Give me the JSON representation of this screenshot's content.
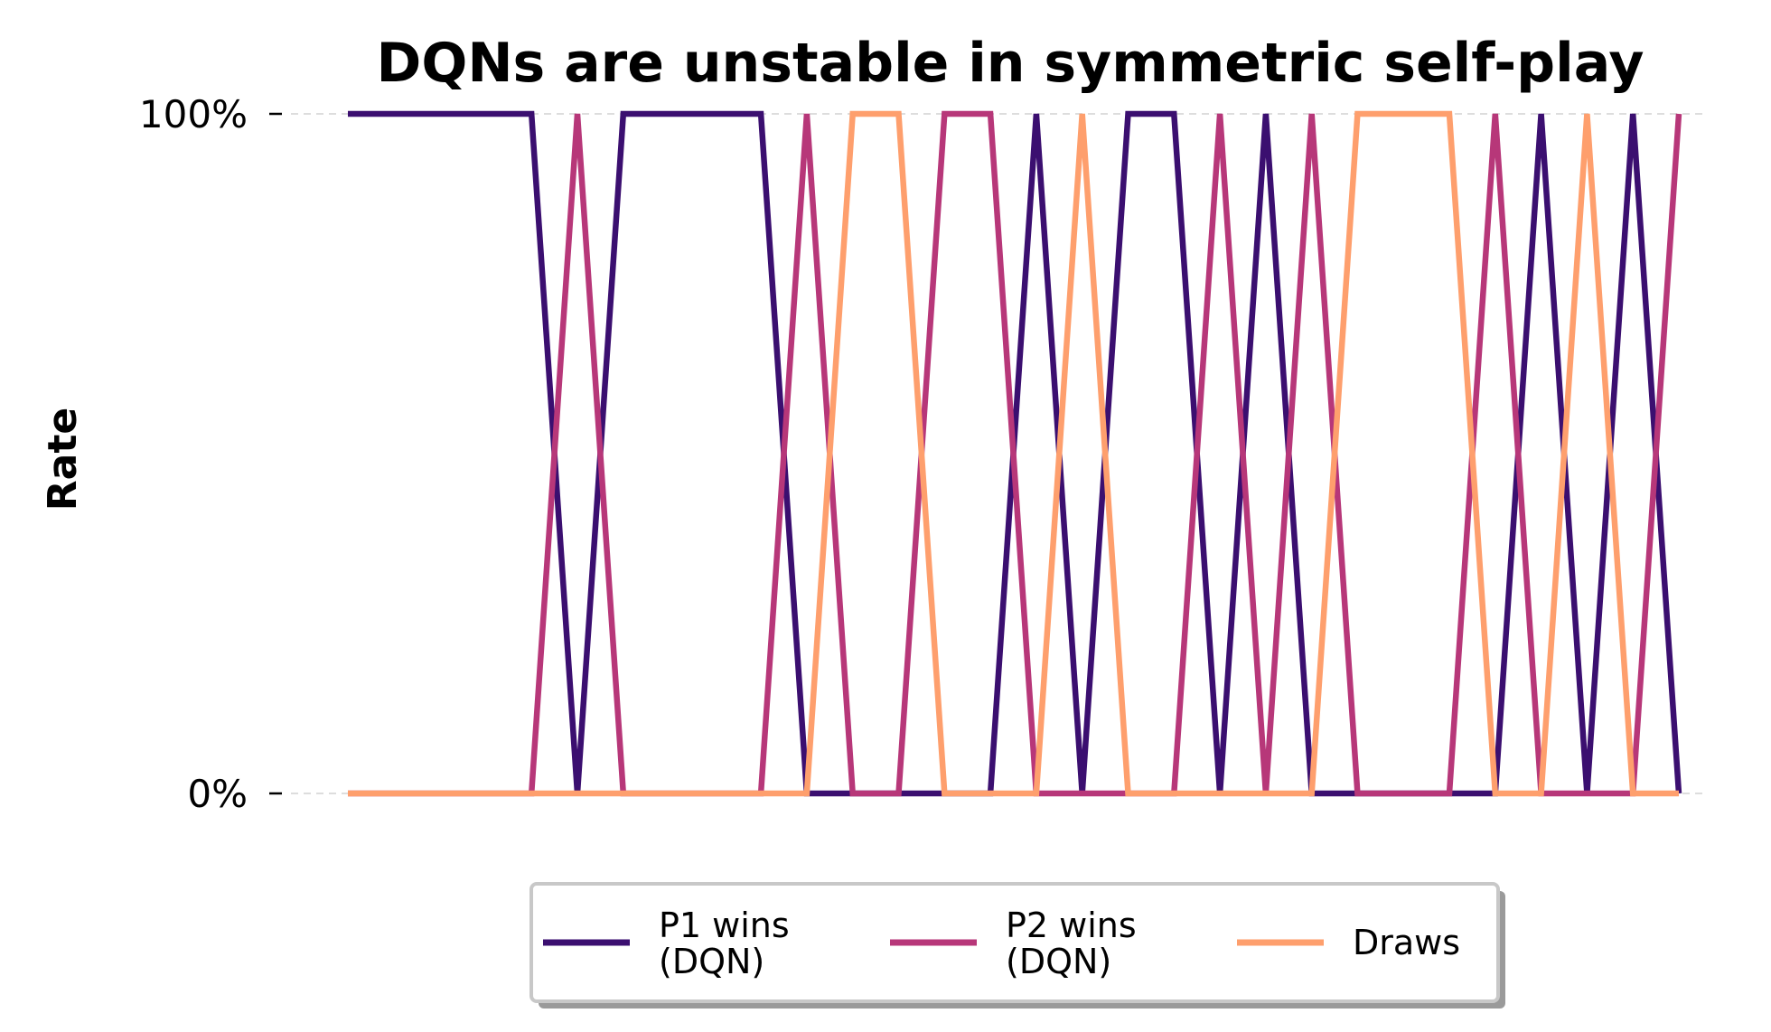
{
  "chart_data": {
    "type": "line",
    "title": "DQNs are unstable in symmetric self-play",
    "xlabel": "",
    "ylabel": "Rate",
    "ylim": [
      0,
      1
    ],
    "yticks": [
      {
        "value": 0,
        "label": "0%"
      },
      {
        "value": 1,
        "label": "100%"
      }
    ],
    "grid": "horizontal-dashed",
    "legend_position": "bottom-center",
    "x": [
      0,
      1,
      2,
      3,
      4,
      5,
      6,
      7,
      8,
      9,
      10,
      11,
      12,
      13,
      14,
      15,
      16,
      17,
      18,
      19,
      20,
      21,
      22,
      23,
      24,
      25,
      26,
      27,
      28,
      29
    ],
    "series": [
      {
        "name": "P1 wins\n(DQN)",
        "color": "#3b0f70",
        "values": [
          1,
          1,
          1,
          1,
          1,
          0,
          1,
          1,
          1,
          1,
          0,
          0,
          0,
          0,
          0,
          1,
          0,
          1,
          1,
          0,
          1,
          0,
          0,
          0,
          0,
          0,
          1,
          0,
          1,
          0
        ]
      },
      {
        "name": "P2 wins\n(DQN)",
        "color": "#b73779",
        "values": [
          0,
          0,
          0,
          0,
          0,
          1,
          0,
          0,
          0,
          0,
          1,
          0,
          0,
          1,
          1,
          0,
          0,
          0,
          0,
          1,
          0,
          1,
          0,
          0,
          0,
          1,
          0,
          0,
          0,
          1
        ]
      },
      {
        "name": "Draws",
        "color": "#fe9f6d",
        "values": [
          0,
          0,
          0,
          0,
          0,
          0,
          0,
          0,
          0,
          0,
          0,
          1,
          1,
          0,
          0,
          0,
          1,
          0,
          0,
          0,
          0,
          0,
          1,
          1,
          1,
          0,
          0,
          1,
          0,
          0
        ]
      }
    ]
  }
}
